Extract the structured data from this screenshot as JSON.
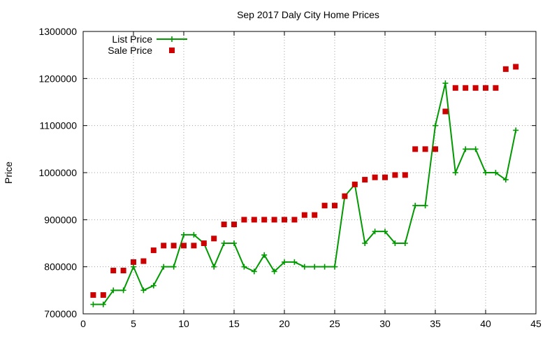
{
  "chart_data": {
    "type": "line",
    "title": "Sep 2017 Daly City Home Prices",
    "xlabel": "",
    "ylabel": "Price",
    "xlim": [
      0,
      45
    ],
    "ylim": [
      700000,
      1300000
    ],
    "x_ticks": [
      0,
      5,
      10,
      15,
      20,
      25,
      30,
      35,
      40,
      45
    ],
    "y_ticks": [
      700000,
      800000,
      900000,
      1000000,
      1100000,
      1200000,
      1300000
    ],
    "grid": true,
    "legend_position": "top-left",
    "series": [
      {
        "name": "List Price",
        "style": "line-plus",
        "color": "#009900",
        "x": [
          1,
          2,
          3,
          4,
          5,
          6,
          7,
          8,
          9,
          10,
          11,
          12,
          13,
          14,
          15,
          16,
          17,
          18,
          19,
          20,
          21,
          22,
          23,
          24,
          25,
          26,
          27,
          28,
          29,
          30,
          31,
          32,
          33,
          34,
          35,
          36,
          37,
          38,
          39,
          40,
          41,
          42,
          43
        ],
        "y": [
          720000,
          720000,
          750000,
          750000,
          800000,
          750000,
          760000,
          800000,
          800000,
          868000,
          868000,
          850000,
          800000,
          850000,
          850000,
          800000,
          790000,
          825000,
          790000,
          810000,
          810000,
          800000,
          800000,
          800000,
          800000,
          950000,
          975000,
          850000,
          875000,
          875000,
          850000,
          850000,
          930000,
          930000,
          1100000,
          1190000,
          1000000,
          1050000,
          1050000,
          1000000,
          1000000,
          985000,
          1090000
        ]
      },
      {
        "name": "Sale Price",
        "style": "square",
        "color": "#cc0000",
        "x": [
          1,
          2,
          3,
          4,
          5,
          6,
          7,
          8,
          9,
          10,
          11,
          12,
          13,
          14,
          15,
          16,
          17,
          18,
          19,
          20,
          21,
          22,
          23,
          24,
          25,
          26,
          27,
          28,
          29,
          30,
          31,
          32,
          33,
          34,
          35,
          36,
          37,
          38,
          39,
          40,
          41,
          42,
          43
        ],
        "y": [
          740000,
          740000,
          792000,
          792000,
          810000,
          812000,
          835000,
          845000,
          845000,
          845000,
          845000,
          850000,
          860000,
          890000,
          890000,
          900000,
          900000,
          900000,
          900000,
          900000,
          900000,
          910000,
          910000,
          930000,
          930000,
          950000,
          975000,
          985000,
          990000,
          990000,
          995000,
          995000,
          1050000,
          1050000,
          1050000,
          1130000,
          1180000,
          1180000,
          1180000,
          1180000,
          1180000,
          1220000,
          1225000
        ]
      }
    ]
  }
}
